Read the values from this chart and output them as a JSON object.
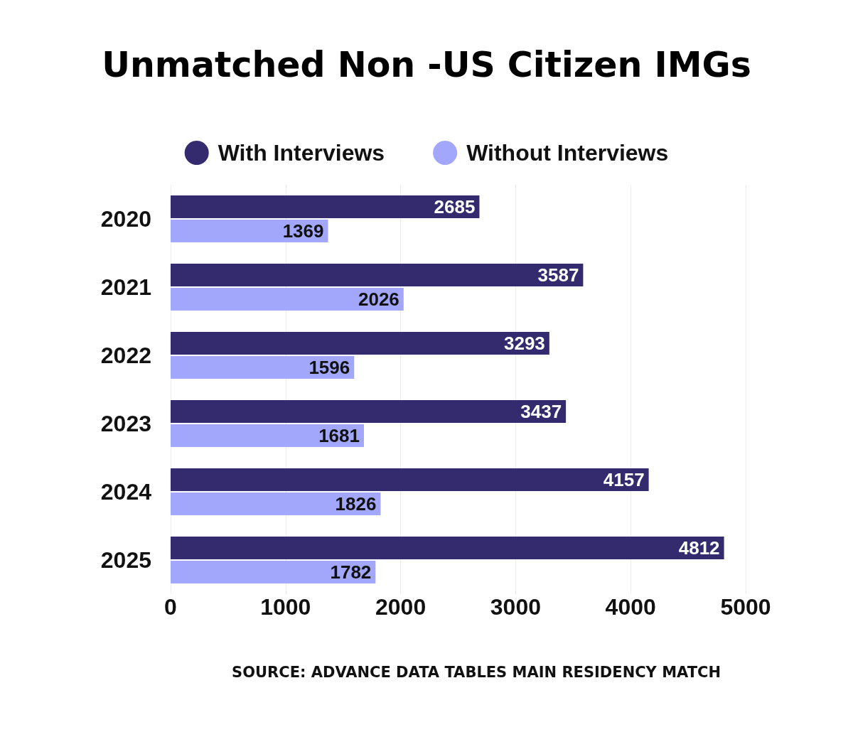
{
  "chart_data": {
    "type": "bar",
    "orientation": "horizontal",
    "title": "Unmatched Non -US Citizen IMGs",
    "categories": [
      "2020",
      "2021",
      "2022",
      "2023",
      "2024",
      "2025"
    ],
    "series": [
      {
        "name": "With Interviews",
        "color": "#342a6e",
        "values": [
          2685,
          3587,
          3293,
          3437,
          4157,
          4812
        ]
      },
      {
        "name": "Without Interviews",
        "color": "#a2a7fb",
        "values": [
          1369,
          2026,
          1596,
          1681,
          1826,
          1782
        ]
      }
    ],
    "xlim": [
      0,
      5000
    ],
    "xticks": [
      0,
      1000,
      2000,
      3000,
      4000,
      5000
    ],
    "grid": "x",
    "legend": "top",
    "data_labels": true,
    "annotations": [
      "SOURCE: ADVANCE DATA TABLES MAIN RESIDENCY MATCH"
    ]
  }
}
